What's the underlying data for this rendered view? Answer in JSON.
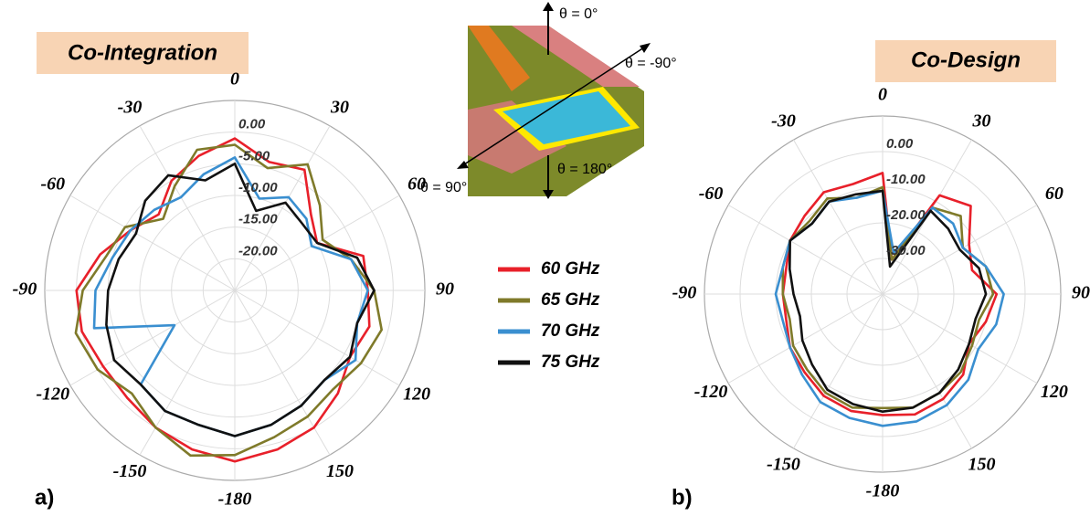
{
  "chart_data": [
    {
      "type": "polar",
      "title": "Co-Integration",
      "panel": "a)",
      "theta": [
        -180,
        -165,
        -150,
        -135,
        -120,
        -105,
        -90,
        -75,
        -60,
        -45,
        -30,
        -15,
        0,
        15,
        30,
        45,
        60,
        75,
        90,
        105,
        120,
        135,
        150,
        165
      ],
      "rlim": [
        -25,
        5
      ],
      "rticks": [
        {
          "value": 0,
          "label": "0.00"
        },
        {
          "value": -5,
          "label": "-5.00"
        },
        {
          "value": -10,
          "label": "-10.00"
        },
        {
          "value": -15,
          "label": "-15.00"
        },
        {
          "value": -20,
          "label": "-20.00"
        }
      ],
      "thetaticks": [
        0,
        30,
        60,
        90,
        120,
        150,
        -180,
        -150,
        -120,
        -90,
        -60,
        -30
      ],
      "series": [
        {
          "name": "60 GHz",
          "color": "#e8202a",
          "values": [
            2,
            1,
            0,
            -1,
            -1,
            0,
            0,
            -3,
            -6,
            -8,
            -5,
            -3,
            -1,
            -4,
            -3,
            -8,
            -10,
            -4,
            -4,
            -3,
            -4,
            -2,
            0,
            1
          ]
        },
        {
          "name": "65 GHz",
          "color": "#7f7a2a",
          "values": [
            1,
            2,
            0,
            -2,
            0,
            1,
            -1,
            -4,
            -5,
            -9,
            -6,
            -2,
            -2,
            -5,
            -2,
            -6,
            -9,
            -6,
            -3,
            -1,
            -2,
            -3,
            -2,
            -1
          ]
        },
        {
          "name": "70 GHz",
          "color": "#3a8fd0",
          "values": [
            -2,
            -3,
            -3,
            -4,
            -14,
            -2,
            -3,
            -5,
            -6,
            -7,
            -8,
            -6,
            -4,
            -10,
            -8,
            -9,
            -11,
            -6,
            -4,
            -5,
            -3,
            -5,
            -4,
            -3
          ]
        },
        {
          "name": "75 GHz",
          "color": "#111111",
          "values": [
            -2,
            -3,
            -3,
            -4,
            -3,
            -4,
            -5,
            -6,
            -7,
            -5,
            -4,
            -7,
            -5,
            -12,
            -9,
            -10,
            -10,
            -5,
            -3,
            -5,
            -4,
            -5,
            -4,
            -3
          ]
        }
      ]
    },
    {
      "type": "polar",
      "title": "Co-Design",
      "panel": "b)",
      "theta": [
        -180,
        -165,
        -150,
        -135,
        -120,
        -105,
        -90,
        -75,
        -60,
        -45,
        -30,
        -15,
        0,
        15,
        30,
        45,
        60,
        75,
        90,
        105,
        120,
        135,
        150,
        165
      ],
      "rlim": [
        -40,
        10
      ],
      "rticks": [
        {
          "value": 0,
          "label": "0.00"
        },
        {
          "value": -10,
          "label": "-10.00"
        },
        {
          "value": -20,
          "label": "-20.00"
        },
        {
          "value": -30,
          "label": "-30.00"
        }
      ],
      "thetaticks": [
        0,
        30,
        60,
        90,
        120,
        150,
        -180,
        -150,
        -120,
        -90,
        -60,
        -30
      ],
      "series": [
        {
          "color": "#e8202a",
          "values": [
            -6,
            -6,
            -7,
            -9,
            -10,
            -12,
            -12,
            -12,
            -10,
            -9,
            -7,
            -8,
            -6,
            -30,
            -8,
            -5,
            -12,
            -14,
            -8,
            -10,
            -12,
            -8,
            -6,
            -5
          ]
        },
        {
          "color": "#7f7a2a",
          "values": [
            -8,
            -7,
            -8,
            -10,
            -11,
            -13,
            -12,
            -11,
            -10,
            -11,
            -9,
            -12,
            -10,
            -30,
            -12,
            -9,
            -14,
            -10,
            -9,
            -12,
            -11,
            -9,
            -8,
            -7
          ]
        },
        {
          "color": "#3a8fd0",
          "values": [
            -3,
            -4,
            -5,
            -8,
            -10,
            -11,
            -10,
            -11,
            -10,
            -12,
            -10,
            -12,
            -11,
            -28,
            -12,
            -12,
            -14,
            -10,
            -6,
            -7,
            -9,
            -6,
            -4,
            -3
          ]
        },
        {
          "color": "#111111",
          "values": [
            -7,
            -8,
            -9,
            -12,
            -14,
            -16,
            -15,
            -13,
            -10,
            -12,
            -10,
            -11,
            -11,
            -32,
            -13,
            -14,
            -15,
            -12,
            -11,
            -13,
            -12,
            -10,
            -8,
            -7
          ]
        }
      ]
    }
  ],
  "inset": {
    "labels": [
      "θ = 0°",
      "θ = -90°",
      "θ = 90°",
      "θ = 180°"
    ]
  }
}
